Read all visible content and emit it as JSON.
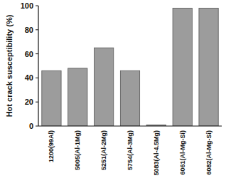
{
  "chart_data": {
    "type": "bar",
    "y_label": "Hot crack susceptibility (%)",
    "categories": [
      "1200(99Al)",
      "5005(Al-1Mg)",
      "5251(Al-2Mg)",
      "5754(Al-3Mg)",
      "5083(Al-4.5Mg)",
      "6061(Al-Mg-Si)",
      "6082(Al-Mg-Si)"
    ],
    "values": [
      46,
      48,
      65,
      46,
      1,
      98,
      98
    ],
    "color": "#9c9c9c",
    "ylim": [
      0,
      100
    ],
    "yticks": [
      0,
      20,
      40,
      60,
      80,
      100
    ],
    "grid": false
  }
}
